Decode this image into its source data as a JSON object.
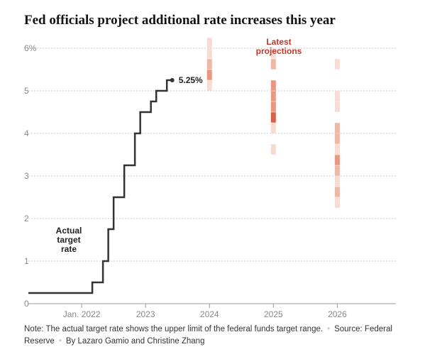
{
  "title": "Fed officials project additional rate increases this year",
  "chart_data": {
    "type": "step-line with dot-plot",
    "title": "Fed officials project additional rate increases this year",
    "y_axis": {
      "min": 0,
      "max": 6,
      "ticks": [
        "0",
        "1",
        "2",
        "3",
        "4",
        "5",
        "6%"
      ],
      "grid": "dotted"
    },
    "x_axis": {
      "range": [
        "2021-03",
        "2026-12"
      ],
      "ticks": [
        {
          "label": "Jan. 2022",
          "date": "2022-01"
        },
        {
          "label": "2023",
          "date": "2023-01"
        },
        {
          "label": "2024",
          "date": "2024-01"
        },
        {
          "label": "2025",
          "date": "2025-01"
        },
        {
          "label": "2026",
          "date": "2026-01"
        }
      ]
    },
    "actual_series": {
      "label": "Actual target rate",
      "color": "#333333",
      "steps": [
        {
          "date": "2021-03",
          "rate": 0.25
        },
        {
          "date": "2022-03",
          "rate": 0.5
        },
        {
          "date": "2022-05",
          "rate": 1.0
        },
        {
          "date": "2022-06",
          "rate": 1.75
        },
        {
          "date": "2022-07",
          "rate": 2.5
        },
        {
          "date": "2022-09",
          "rate": 3.25
        },
        {
          "date": "2022-11",
          "rate": 4.0
        },
        {
          "date": "2022-12",
          "rate": 4.5
        },
        {
          "date": "2023-02",
          "rate": 4.75
        },
        {
          "date": "2023-03",
          "rate": 5.0
        },
        {
          "date": "2023-05",
          "rate": 5.25
        }
      ],
      "end_date": "2023-06",
      "end_label": "5.25%"
    },
    "projections": {
      "label": "Latest projections",
      "label_color": "#c0392b",
      "colors": [
        "#f6dcd3",
        "#efb8a6",
        "#e89880",
        "#d9614a"
      ],
      "columns": [
        {
          "year": "2024",
          "cells": [
            {
              "rate": 6.125,
              "level": 0
            },
            {
              "rate": 5.875,
              "level": 0
            },
            {
              "rate": 5.625,
              "level": 1
            },
            {
              "rate": 5.375,
              "level": 2
            },
            {
              "rate": 5.125,
              "level": 0
            }
          ]
        },
        {
          "year": "2025",
          "cells": [
            {
              "rate": 5.875,
              "level": 0
            },
            {
              "rate": 5.625,
              "level": 1
            },
            {
              "rate": 5.125,
              "level": 2
            },
            {
              "rate": 4.875,
              "level": 2
            },
            {
              "rate": 4.625,
              "level": 2
            },
            {
              "rate": 4.375,
              "level": 3
            },
            {
              "rate": 4.125,
              "level": 0
            },
            {
              "rate": 3.625,
              "level": 0
            }
          ]
        },
        {
          "year": "2026",
          "cells": [
            {
              "rate": 5.625,
              "level": 0
            },
            {
              "rate": 4.875,
              "level": 0
            },
            {
              "rate": 4.625,
              "level": 0
            },
            {
              "rate": 4.125,
              "level": 1
            },
            {
              "rate": 3.875,
              "level": 1
            },
            {
              "rate": 3.625,
              "level": 0
            },
            {
              "rate": 3.375,
              "level": 2
            },
            {
              "rate": 3.125,
              "level": 1
            },
            {
              "rate": 2.875,
              "level": 0
            },
            {
              "rate": 2.625,
              "level": 1
            },
            {
              "rate": 2.375,
              "level": 0
            }
          ]
        }
      ]
    },
    "annotations": {
      "actual_label": [
        "Actual",
        "target",
        "rate"
      ],
      "projection_label": [
        "Latest",
        "projections"
      ]
    }
  },
  "footer": {
    "note": "Note: The actual target rate shows the upper limit of the federal funds target range.",
    "source": "Source: Federal Reserve",
    "byline": "By Lazaro Gamio and Christine Zhang",
    "separator": "•"
  }
}
